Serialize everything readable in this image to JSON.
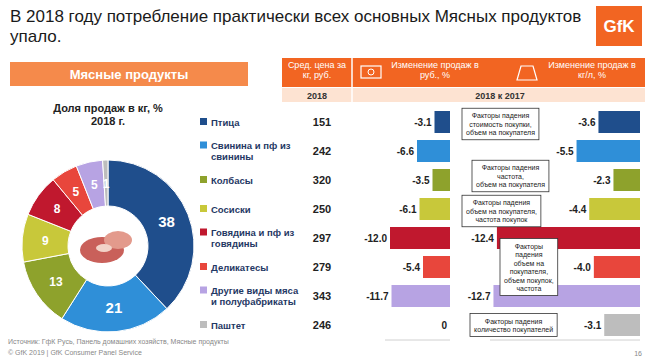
{
  "title": "В 2018 году потребление практически всех основных Мясных продуктов упало.",
  "logo": "GfK",
  "section_header": "Мясные продукты",
  "price_column": {
    "header": "Сред. цена за кг, руб.",
    "year": "2018",
    "values": [
      151,
      242,
      320,
      250,
      297,
      279,
      343,
      246
    ]
  },
  "period": "2018 к 2017",
  "chart_data": [
    {
      "type": "pie",
      "title": "Доля продаж в кг, %",
      "subtitle": "2018 г.",
      "categories": [
        "Птица",
        "Свинина и пф из свинины",
        "Колбасы",
        "Сосиски",
        "Говядина и пф из говядины",
        "Деликатесы",
        "Другие виды мяса и полуфабрикаты",
        "Паштет"
      ],
      "values": [
        38,
        21,
        13,
        9,
        8,
        5,
        5,
        1
      ],
      "colors": [
        "#1f4e8c",
        "#2f8fd8",
        "#8ea22c",
        "#c8c83a",
        "#c0182e",
        "#e8463c",
        "#b7a3e3",
        "#bdbdbd"
      ],
      "data_labels": true
    },
    {
      "type": "bar",
      "orientation": "horizontal",
      "title": "Изменение продаж в руб., %",
      "categories": [
        null,
        null,
        null,
        null,
        null,
        null,
        null,
        null
      ],
      "values": [
        -3.1,
        -6.6,
        -3.5,
        -6.1,
        -12.0,
        -5.4,
        -11.7,
        0
      ],
      "value_labels": [
        "-3.1",
        "-6.6",
        "-3.5",
        "-6.1",
        "-12.0",
        "-5.4",
        "-11.7",
        "0"
      ],
      "colors": [
        "#1f4e8c",
        "#2f8fd8",
        "#8ea22c",
        "#c8c83a",
        "#c0182e",
        "#e8463c",
        "#b7a3e3",
        "#bdbdbd"
      ],
      "xlim": [
        -13,
        0
      ],
      "data_labels": true,
      "tick_labels": false
    },
    {
      "type": "bar",
      "orientation": "horizontal",
      "title": "Изменение продаж в кг/л, %",
      "categories": [
        null,
        null,
        null,
        null,
        null,
        null,
        null,
        null
      ],
      "values": [
        -3.6,
        -5.5,
        -2.3,
        -4.4,
        -12.4,
        -4.0,
        -12.7,
        -3.1
      ],
      "value_labels": [
        "-3.6",
        "-5.5",
        "-2.3",
        "-4.4",
        "-12.4",
        "-4.0",
        "-12.7",
        "-3.1"
      ],
      "colors": [
        "#1f4e8c",
        "#2f8fd8",
        "#8ea22c",
        "#c8c83a",
        "#c0182e",
        "#e8463c",
        "#b7a3e3",
        "#bdbdbd"
      ],
      "xlim": [
        -13,
        0
      ],
      "data_labels": true,
      "tick_labels": false
    }
  ],
  "factor_notes": [
    {
      "lines": [
        "Факторы падения",
        "стоимость покупки,",
        "объем на покупателя"
      ]
    },
    null,
    {
      "lines": [
        "Факторы падения",
        "частота,",
        "объем на покупателя"
      ]
    },
    {
      "lines": [
        "Факторы падения",
        "объем на покупателя,",
        "частота покупок"
      ]
    },
    null,
    {
      "lines": [
        "Факторы",
        "падения",
        "объем на",
        "покупателя,",
        "объем покупок,",
        "частота"
      ]
    },
    null,
    {
      "lines": [
        "Факторы падения",
        "количество покупателей"
      ]
    }
  ],
  "footer": {
    "source": "Источник: ГфК Русь, Панель домашних хозяйств, Мясные продукты",
    "copyright": "© GfK 2019 | GfK Consumer Panel Service",
    "page": "16"
  }
}
